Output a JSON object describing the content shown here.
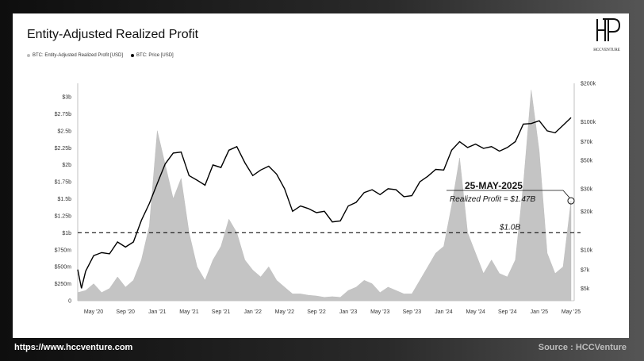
{
  "header": {
    "title": "Entity-Adjusted Realized Profit"
  },
  "logo": {
    "text": "HCCVENTURE"
  },
  "legend": [
    {
      "label": "BTC: Entity-Adjusted Realized Profit [USD]",
      "color": "#bdbdbd"
    },
    {
      "label": "BTC: Price [USD]",
      "color": "#000000"
    }
  ],
  "annotation": {
    "date": "25-MAY-2025",
    "text": "Realized Profit = $1.47B",
    "threshold_label": "$1.0B"
  },
  "footer": {
    "website": "https://www.hccventure.com",
    "source": "Source : HCCVenture"
  },
  "chart_data": {
    "type": "area",
    "title": "Entity-Adjusted Realized Profit",
    "x_ticks": [
      "May '20",
      "Sep '20",
      "Jan '21",
      "May '21",
      "Sep '21",
      "Jan '22",
      "May '22",
      "Sep '22",
      "Jan '23",
      "May '23",
      "Sep '23",
      "Jan '24",
      "May '24",
      "Sep '24",
      "Jan '25",
      "May '25"
    ],
    "y_left_ticks": [
      "0",
      "$250m",
      "$500m",
      "$750m",
      "$1b",
      "$1.25b",
      "$1.5b",
      "$1.75b",
      "$2b",
      "$2.25b",
      "$2.5b",
      "$2.75b",
      "$3b"
    ],
    "y_left_range": [
      0,
      3000000000
    ],
    "y_right_ticks": [
      "$5k",
      "$7k",
      "$10k",
      "$20k",
      "$30k",
      "$50k",
      "$70k",
      "$100k",
      "$200k"
    ],
    "y_right_range": [
      4000,
      200000
    ],
    "y_right_scale": "log",
    "threshold": 1000000000,
    "series": [
      {
        "name": "BTC: Entity-Adjusted Realized Profit [USD]",
        "axis": "left",
        "color": "#c4c4c4",
        "points": [
          [
            "2020-03",
            0.12
          ],
          [
            "2020-04",
            0.15
          ],
          [
            "2020-05",
            0.25
          ],
          [
            "2020-06",
            0.12
          ],
          [
            "2020-07",
            0.18
          ],
          [
            "2020-08",
            0.35
          ],
          [
            "2020-09",
            0.2
          ],
          [
            "2020-10",
            0.3
          ],
          [
            "2020-11",
            0.6
          ],
          [
            "2020-12",
            1.1
          ],
          [
            "2021-01",
            2.5
          ],
          [
            "2021-02",
            2.0
          ],
          [
            "2021-03",
            1.5
          ],
          [
            "2021-04",
            1.8
          ],
          [
            "2021-05",
            1.0
          ],
          [
            "2021-06",
            0.5
          ],
          [
            "2021-07",
            0.3
          ],
          [
            "2021-08",
            0.6
          ],
          [
            "2021-09",
            0.8
          ],
          [
            "2021-10",
            1.2
          ],
          [
            "2021-11",
            1.0
          ],
          [
            "2021-12",
            0.6
          ],
          [
            "2022-01",
            0.45
          ],
          [
            "2022-02",
            0.35
          ],
          [
            "2022-03",
            0.5
          ],
          [
            "2022-04",
            0.3
          ],
          [
            "2022-05",
            0.2
          ],
          [
            "2022-06",
            0.1
          ],
          [
            "2022-07",
            0.1
          ],
          [
            "2022-08",
            0.08
          ],
          [
            "2022-09",
            0.07
          ],
          [
            "2022-10",
            0.05
          ],
          [
            "2022-11",
            0.06
          ],
          [
            "2022-12",
            0.05
          ],
          [
            "2023-01",
            0.15
          ],
          [
            "2023-02",
            0.2
          ],
          [
            "2023-03",
            0.3
          ],
          [
            "2023-04",
            0.25
          ],
          [
            "2023-05",
            0.12
          ],
          [
            "2023-06",
            0.2
          ],
          [
            "2023-07",
            0.15
          ],
          [
            "2023-08",
            0.1
          ],
          [
            "2023-09",
            0.1
          ],
          [
            "2023-10",
            0.3
          ],
          [
            "2023-11",
            0.5
          ],
          [
            "2023-12",
            0.7
          ],
          [
            "2024-01",
            0.8
          ],
          [
            "2024-02",
            1.4
          ],
          [
            "2024-03",
            2.1
          ],
          [
            "2024-04",
            1.0
          ],
          [
            "2024-05",
            0.7
          ],
          [
            "2024-06",
            0.4
          ],
          [
            "2024-07",
            0.6
          ],
          [
            "2024-08",
            0.4
          ],
          [
            "2024-09",
            0.35
          ],
          [
            "2024-10",
            0.6
          ],
          [
            "2024-11",
            1.7
          ],
          [
            "2024-12",
            3.1
          ],
          [
            "2025-01",
            2.2
          ],
          [
            "2025-02",
            0.7
          ],
          [
            "2025-03",
            0.4
          ],
          [
            "2025-04",
            0.5
          ],
          [
            "2025-05",
            1.47
          ]
        ]
      },
      {
        "name": "BTC: Price [USD]",
        "axis": "right",
        "color": "#000000",
        "points": [
          [
            "2020-03",
            7000
          ],
          [
            "2020-03-15",
            5000
          ],
          [
            "2020-04",
            6800
          ],
          [
            "2020-05",
            9000
          ],
          [
            "2020-06",
            9500
          ],
          [
            "2020-07",
            9300
          ],
          [
            "2020-08",
            11500
          ],
          [
            "2020-09",
            10500
          ],
          [
            "2020-10",
            11500
          ],
          [
            "2020-11",
            17000
          ],
          [
            "2020-12",
            23000
          ],
          [
            "2021-01",
            33000
          ],
          [
            "2021-02",
            47000
          ],
          [
            "2021-03",
            57000
          ],
          [
            "2021-04",
            58000
          ],
          [
            "2021-05",
            38000
          ],
          [
            "2021-06",
            35000
          ],
          [
            "2021-07",
            32000
          ],
          [
            "2021-08",
            46000
          ],
          [
            "2021-09",
            44000
          ],
          [
            "2021-10",
            60000
          ],
          [
            "2021-11",
            64000
          ],
          [
            "2021-12",
            48000
          ],
          [
            "2022-01",
            38000
          ],
          [
            "2022-02",
            42000
          ],
          [
            "2022-03",
            45000
          ],
          [
            "2022-04",
            39000
          ],
          [
            "2022-05",
            30000
          ],
          [
            "2022-06",
            20000
          ],
          [
            "2022-07",
            22000
          ],
          [
            "2022-08",
            21000
          ],
          [
            "2022-09",
            19500
          ],
          [
            "2022-10",
            20000
          ],
          [
            "2022-11",
            16500
          ],
          [
            "2022-12",
            16800
          ],
          [
            "2023-01",
            22000
          ],
          [
            "2023-02",
            23500
          ],
          [
            "2023-03",
            28000
          ],
          [
            "2023-04",
            29500
          ],
          [
            "2023-05",
            27000
          ],
          [
            "2023-06",
            30000
          ],
          [
            "2023-07",
            29500
          ],
          [
            "2023-08",
            26000
          ],
          [
            "2023-09",
            26500
          ],
          [
            "2023-10",
            34000
          ],
          [
            "2023-11",
            37500
          ],
          [
            "2023-12",
            42500
          ],
          [
            "2024-01",
            42000
          ],
          [
            "2024-02",
            60000
          ],
          [
            "2024-03",
            70000
          ],
          [
            "2024-04",
            63000
          ],
          [
            "2024-05",
            67000
          ],
          [
            "2024-06",
            62000
          ],
          [
            "2024-07",
            64000
          ],
          [
            "2024-08",
            59000
          ],
          [
            "2024-09",
            63000
          ],
          [
            "2024-10",
            70000
          ],
          [
            "2024-11",
            96000
          ],
          [
            "2024-12",
            97000
          ],
          [
            "2025-01",
            102000
          ],
          [
            "2025-02",
            85000
          ],
          [
            "2025-03",
            82000
          ],
          [
            "2025-04",
            94000
          ],
          [
            "2025-05",
            108000
          ]
        ]
      }
    ]
  }
}
